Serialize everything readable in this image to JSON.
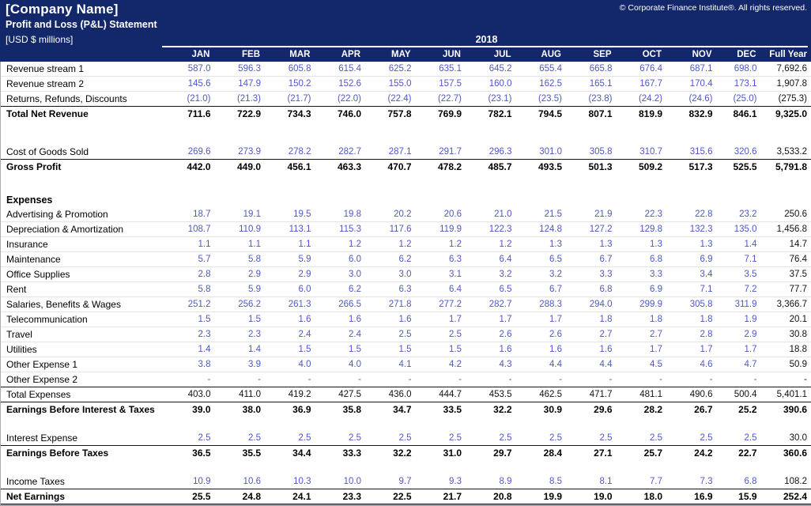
{
  "header": {
    "company": "[Company Name]",
    "subtitle": "Profit and Loss (P&L) Statement",
    "units": "[USD $ millions]",
    "copyright": "© Corporate Finance Institute®. All rights reserved.",
    "year": "2018"
  },
  "colors": {
    "navy": "#13276b",
    "input_blue": "#4f58c4",
    "text": "#000000",
    "grid_light": "#e4e4e4",
    "rule_dark": "#141414"
  },
  "table": {
    "columns": [
      "JAN",
      "FEB",
      "MAR",
      "APR",
      "MAY",
      "JUN",
      "JUL",
      "AUG",
      "SEP",
      "OCT",
      "NOV",
      "DEC",
      "Full Year"
    ],
    "rows": [
      {
        "label": "Revenue stream 1",
        "type": "input",
        "border": "light",
        "values": [
          "587.0",
          "596.3",
          "605.8",
          "615.4",
          "625.2",
          "635.1",
          "645.2",
          "655.4",
          "665.8",
          "676.4",
          "687.1",
          "698.0",
          "7,692.6"
        ]
      },
      {
        "label": "Revenue stream 2",
        "type": "input",
        "border": "light",
        "values": [
          "145.6",
          "147.9",
          "150.2",
          "152.6",
          "155.0",
          "157.5",
          "160.0",
          "162.5",
          "165.1",
          "167.7",
          "170.4",
          "173.1",
          "1,907.8"
        ]
      },
      {
        "label": "Returns, Refunds, Discounts",
        "type": "input",
        "border": "dark",
        "values": [
          "(21.0)",
          "(21.3)",
          "(21.7)",
          "(22.0)",
          "(22.4)",
          "(22.7)",
          "(23.1)",
          "(23.5)",
          "(23.8)",
          "(24.2)",
          "(24.6)",
          "(25.0)",
          "(275.3)"
        ]
      },
      {
        "label": "Total Net Revenue",
        "type": "total",
        "border": "none",
        "values": [
          "711.6",
          "722.9",
          "734.3",
          "746.0",
          "757.8",
          "769.9",
          "782.1",
          "794.5",
          "807.1",
          "819.9",
          "832.9",
          "846.1",
          "9,325.0"
        ]
      },
      {
        "type": "spacer",
        "height": 30
      },
      {
        "label": "Cost of Goods Sold",
        "type": "input",
        "border": "dark",
        "values": [
          "269.6",
          "273.9",
          "278.2",
          "282.7",
          "287.1",
          "291.7",
          "296.3",
          "301.0",
          "305.8",
          "310.7",
          "315.6",
          "320.6",
          "3,533.2"
        ]
      },
      {
        "label": "Gross Profit",
        "type": "total",
        "border": "none",
        "values": [
          "442.0",
          "449.0",
          "456.1",
          "463.3",
          "470.7",
          "478.2",
          "485.7",
          "493.5",
          "501.3",
          "509.2",
          "517.3",
          "525.5",
          "5,791.8"
        ]
      },
      {
        "type": "spacer",
        "height": 24
      },
      {
        "label": "Expenses",
        "type": "section",
        "border": "none",
        "values": [
          "",
          "",
          "",
          "",
          "",
          "",
          "",
          "",
          "",
          "",
          "",
          "",
          ""
        ]
      },
      {
        "label": "Advertising & Promotion",
        "type": "input",
        "border": "light",
        "values": [
          "18.7",
          "19.1",
          "19.5",
          "19.8",
          "20.2",
          "20.6",
          "21.0",
          "21.5",
          "21.9",
          "22.3",
          "22.8",
          "23.2",
          "250.6"
        ]
      },
      {
        "label": "Depreciation & Amortization",
        "type": "input",
        "border": "light",
        "values": [
          "108.7",
          "110.9",
          "113.1",
          "115.3",
          "117.6",
          "119.9",
          "122.3",
          "124.8",
          "127.2",
          "129.8",
          "132.3",
          "135.0",
          "1,456.8"
        ]
      },
      {
        "label": "Insurance",
        "type": "input",
        "border": "light",
        "values": [
          "1.1",
          "1.1",
          "1.1",
          "1.2",
          "1.2",
          "1.2",
          "1.2",
          "1.3",
          "1.3",
          "1.3",
          "1.3",
          "1.4",
          "14.7"
        ]
      },
      {
        "label": "Maintenance",
        "type": "input",
        "border": "light",
        "values": [
          "5.7",
          "5.8",
          "5.9",
          "6.0",
          "6.2",
          "6.3",
          "6.4",
          "6.5",
          "6.7",
          "6.8",
          "6.9",
          "7.1",
          "76.4"
        ]
      },
      {
        "label": "Office Supplies",
        "type": "input",
        "border": "light",
        "values": [
          "2.8",
          "2.9",
          "2.9",
          "3.0",
          "3.0",
          "3.1",
          "3.2",
          "3.2",
          "3.3",
          "3.3",
          "3.4",
          "3.5",
          "37.5"
        ]
      },
      {
        "label": "Rent",
        "type": "input",
        "border": "light",
        "values": [
          "5.8",
          "5.9",
          "6.0",
          "6.2",
          "6.3",
          "6.4",
          "6.5",
          "6.7",
          "6.8",
          "6.9",
          "7.1",
          "7.2",
          "77.7"
        ]
      },
      {
        "label": "Salaries, Benefits & Wages",
        "type": "input",
        "border": "light",
        "values": [
          "251.2",
          "256.2",
          "261.3",
          "266.5",
          "271.8",
          "277.2",
          "282.7",
          "288.3",
          "294.0",
          "299.9",
          "305.8",
          "311.9",
          "3,366.7"
        ]
      },
      {
        "label": "Telecommunication",
        "type": "input",
        "border": "light",
        "values": [
          "1.5",
          "1.5",
          "1.6",
          "1.6",
          "1.6",
          "1.7",
          "1.7",
          "1.7",
          "1.8",
          "1.8",
          "1.8",
          "1.9",
          "20.1"
        ]
      },
      {
        "label": "Travel",
        "type": "input",
        "border": "light",
        "values": [
          "2.3",
          "2.3",
          "2.4",
          "2.4",
          "2.5",
          "2.5",
          "2.6",
          "2.6",
          "2.7",
          "2.7",
          "2.8",
          "2.9",
          "30.8"
        ]
      },
      {
        "label": "Utilities",
        "type": "input",
        "border": "light",
        "values": [
          "1.4",
          "1.4",
          "1.5",
          "1.5",
          "1.5",
          "1.5",
          "1.6",
          "1.6",
          "1.6",
          "1.7",
          "1.7",
          "1.7",
          "18.8"
        ]
      },
      {
        "label": "Other Expense 1",
        "type": "input",
        "border": "light",
        "values": [
          "3.8",
          "3.9",
          "4.0",
          "4.0",
          "4.1",
          "4.2",
          "4.3",
          "4.4",
          "4.4",
          "4.5",
          "4.6",
          "4.7",
          "50.9"
        ]
      },
      {
        "label": "Other Expense 2",
        "type": "input",
        "border": "dark",
        "values": [
          "-",
          "-",
          "-",
          "-",
          "-",
          "-",
          "-",
          "-",
          "-",
          "-",
          "-",
          "-",
          "-"
        ]
      },
      {
        "label": "Total Expenses",
        "type": "plain",
        "border": "dark",
        "values": [
          "403.0",
          "411.0",
          "419.2",
          "427.5",
          "436.0",
          "444.7",
          "453.5",
          "462.5",
          "471.7",
          "481.1",
          "490.6",
          "500.4",
          "5,401.1"
        ]
      },
      {
        "label": "Earnings Before Interest & Taxes",
        "type": "total",
        "border": "none",
        "values": [
          "39.0",
          "38.0",
          "36.9",
          "35.8",
          "34.7",
          "33.5",
          "32.2",
          "30.9",
          "29.6",
          "28.2",
          "26.7",
          "25.2",
          "390.6"
        ]
      },
      {
        "type": "spacer",
        "height": 18
      },
      {
        "label": "Interest Expense",
        "type": "input",
        "border": "dark",
        "values": [
          "2.5",
          "2.5",
          "2.5",
          "2.5",
          "2.5",
          "2.5",
          "2.5",
          "2.5",
          "2.5",
          "2.5",
          "2.5",
          "2.5",
          "30.0"
        ]
      },
      {
        "label": "Earnings Before Taxes",
        "type": "total",
        "border": "none",
        "values": [
          "36.5",
          "35.5",
          "34.4",
          "33.3",
          "32.2",
          "31.0",
          "29.7",
          "28.4",
          "27.1",
          "25.7",
          "24.2",
          "22.7",
          "360.6"
        ]
      },
      {
        "type": "spacer",
        "height": 18
      },
      {
        "label": "Income Taxes",
        "type": "input",
        "border": "dark",
        "values": [
          "10.9",
          "10.6",
          "10.3",
          "10.0",
          "9.7",
          "9.3",
          "8.9",
          "8.5",
          "8.1",
          "7.7",
          "7.3",
          "6.8",
          "108.2"
        ]
      },
      {
        "label": "Net Earnings",
        "type": "total",
        "border": "dark",
        "values": [
          "25.5",
          "24.8",
          "24.1",
          "23.3",
          "22.5",
          "21.7",
          "20.8",
          "19.9",
          "19.0",
          "18.0",
          "16.9",
          "15.9",
          "252.4"
        ]
      }
    ]
  }
}
